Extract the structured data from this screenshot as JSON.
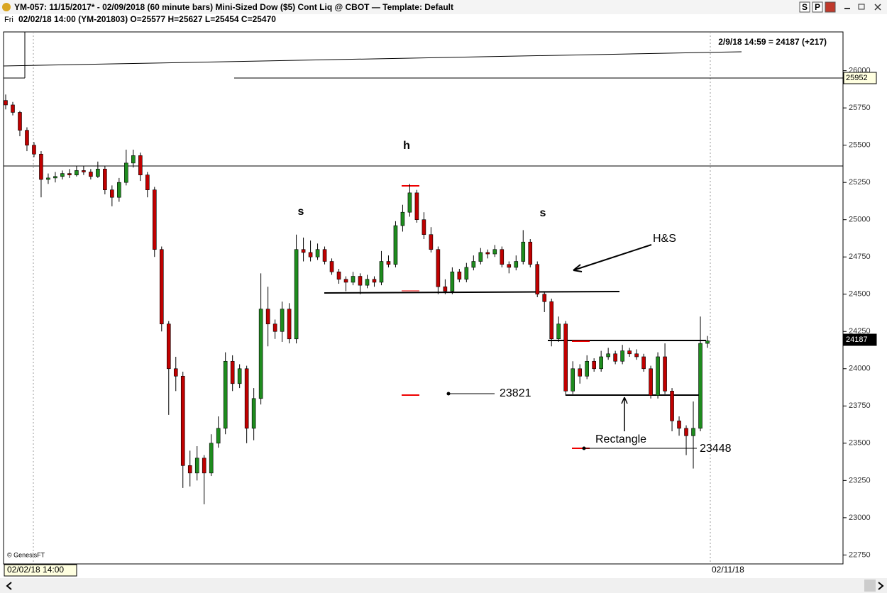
{
  "window_title": "YM-057:  11/15/2017* - 02/09/2018  (60 minute bars)   Mini-Sized Dow ($5) Cont Liq @ CBOT  —  Template: Default",
  "title_buttons": [
    "S",
    "P"
  ],
  "chart_data": {
    "type": "candlestick",
    "info_bar": {
      "day": "Fri",
      "text": "02/02/18 14:00 (YM-201803)  O=25577  H=25627  L=25454  C=25470"
    },
    "status": "2/9/18 14:59 = 24187 (+217)",
    "ohlc": [
      [
        25800,
        25840,
        25740,
        25770
      ],
      [
        25770,
        25790,
        25700,
        25720
      ],
      [
        25720,
        25730,
        25560,
        25600
      ],
      [
        25600,
        25620,
        25460,
        25500
      ],
      [
        25500,
        25520,
        25420,
        25440
      ],
      [
        25440,
        25460,
        25150,
        25270
      ],
      [
        25270,
        25310,
        25240,
        25280
      ],
      [
        25280,
        25320,
        25250,
        25290
      ],
      [
        25290,
        25330,
        25270,
        25310
      ],
      [
        25310,
        25340,
        25280,
        25300
      ],
      [
        25300,
        25360,
        25290,
        25330
      ],
      [
        25330,
        25360,
        25300,
        25320
      ],
      [
        25320,
        25340,
        25270,
        25290
      ],
      [
        25290,
        25390,
        25280,
        25340
      ],
      [
        25340,
        25360,
        25170,
        25200
      ],
      [
        25200,
        25230,
        25090,
        25150
      ],
      [
        25150,
        25280,
        25120,
        25250
      ],
      [
        25250,
        25470,
        25230,
        25380
      ],
      [
        25380,
        25470,
        25350,
        25430
      ],
      [
        25430,
        25450,
        25260,
        25300
      ],
      [
        25300,
        25320,
        25150,
        25200
      ],
      [
        25200,
        25220,
        24750,
        24800
      ],
      [
        24800,
        24820,
        24250,
        24300
      ],
      [
        24300,
        24320,
        23690,
        24000
      ],
      [
        24000,
        24080,
        23850,
        23950
      ],
      [
        23950,
        23980,
        23200,
        23350
      ],
      [
        23350,
        23450,
        23210,
        23300
      ],
      [
        23300,
        23480,
        23250,
        23400
      ],
      [
        23400,
        23420,
        23090,
        23300
      ],
      [
        23300,
        23560,
        23280,
        23500
      ],
      [
        23500,
        23680,
        23470,
        23600
      ],
      [
        23600,
        24110,
        23560,
        24050
      ],
      [
        24050,
        24090,
        23850,
        23900
      ],
      [
        23900,
        24030,
        23870,
        24000
      ],
      [
        24000,
        24020,
        23500,
        23600
      ],
      [
        23600,
        23870,
        23520,
        23800
      ],
      [
        23800,
        24640,
        23760,
        24400
      ],
      [
        24400,
        24550,
        24150,
        24300
      ],
      [
        24300,
        24330,
        24200,
        24250
      ],
      [
        24250,
        24450,
        24180,
        24400
      ],
      [
        24400,
        24440,
        24170,
        24200
      ],
      [
        24200,
        24900,
        24170,
        24800
      ],
      [
        24800,
        24880,
        24720,
        24780
      ],
      [
        24780,
        24860,
        24720,
        24750
      ],
      [
        24750,
        24840,
        24730,
        24800
      ],
      [
        24800,
        24820,
        24700,
        24720
      ],
      [
        24720,
        24740,
        24630,
        24650
      ],
      [
        24650,
        24670,
        24570,
        24600
      ],
      [
        24600,
        24620,
        24520,
        24580
      ],
      [
        24580,
        24650,
        24560,
        24620
      ],
      [
        24620,
        24640,
        24500,
        24560
      ],
      [
        24560,
        24630,
        24540,
        24600
      ],
      [
        24600,
        24620,
        24550,
        24580
      ],
      [
        24580,
        24790,
        24560,
        24720
      ],
      [
        24720,
        24760,
        24680,
        24700
      ],
      [
        24700,
        24990,
        24680,
        24960
      ],
      [
        24960,
        25100,
        24920,
        25050
      ],
      [
        25050,
        25240,
        25020,
        25180
      ],
      [
        25180,
        25200,
        24980,
        25000
      ],
      [
        25000,
        25050,
        24870,
        24900
      ],
      [
        24900,
        24950,
        24780,
        24800
      ],
      [
        24800,
        24820,
        24500,
        24550
      ],
      [
        24550,
        24600,
        24500,
        24520
      ],
      [
        24520,
        24680,
        24500,
        24650
      ],
      [
        24650,
        24670,
        24580,
        24600
      ],
      [
        24600,
        24710,
        24580,
        24680
      ],
      [
        24680,
        24760,
        24660,
        24720
      ],
      [
        24720,
        24810,
        24700,
        24780
      ],
      [
        24780,
        24800,
        24740,
        24770
      ],
      [
        24770,
        24830,
        24750,
        24800
      ],
      [
        24800,
        24820,
        24680,
        24700
      ],
      [
        24700,
        24720,
        24640,
        24680
      ],
      [
        24680,
        24760,
        24660,
        24720
      ],
      [
        24720,
        24930,
        24700,
        24850
      ],
      [
        24850,
        24870,
        24680,
        24700
      ],
      [
        24700,
        24720,
        24480,
        24500
      ],
      [
        24500,
        24520,
        24380,
        24450
      ],
      [
        24450,
        24470,
        24150,
        24200
      ],
      [
        24200,
        24350,
        24180,
        24300
      ],
      [
        24300,
        24320,
        23820,
        23850
      ],
      [
        23850,
        24050,
        23830,
        24000
      ],
      [
        24000,
        24030,
        23900,
        23950
      ],
      [
        23950,
        24090,
        23930,
        24050
      ],
      [
        24050,
        24070,
        23980,
        24000
      ],
      [
        24000,
        24120,
        23980,
        24080
      ],
      [
        24080,
        24140,
        24060,
        24100
      ],
      [
        24100,
        24120,
        24030,
        24050
      ],
      [
        24050,
        24160,
        24030,
        24120
      ],
      [
        24120,
        24140,
        24080,
        24100
      ],
      [
        24100,
        24130,
        24060,
        24080
      ],
      [
        24080,
        24100,
        23980,
        24000
      ],
      [
        24000,
        24020,
        23800,
        23820
      ],
      [
        23820,
        24110,
        23800,
        24080
      ],
      [
        24080,
        24170,
        23830,
        23850
      ],
      [
        23850,
        23870,
        23580,
        23650
      ],
      [
        23650,
        23680,
        23550,
        23600
      ],
      [
        23600,
        23620,
        23420,
        23550
      ],
      [
        23550,
        23780,
        23330,
        23600
      ],
      [
        23600,
        24350,
        23580,
        24170
      ],
      [
        24170,
        24220,
        24140,
        24187
      ]
    ],
    "ylim": [
      22690,
      26260
    ],
    "yticks": [
      22750,
      23000,
      23250,
      23500,
      23750,
      24000,
      24250,
      24500,
      24750,
      25000,
      25250,
      25500,
      25750,
      26000
    ],
    "price_labels": [
      "25952",
      "24187"
    ],
    "annotations": [
      "h",
      "s",
      "s",
      "H&S",
      "23821",
      "Rectangle",
      "23448"
    ],
    "copyright": "© GenesisFT",
    "cursor_date": "02/02/18 14:00",
    "x_label": "02/11/18",
    "colors": {
      "up": "#1e8c1e",
      "down": "#c00000"
    }
  }
}
